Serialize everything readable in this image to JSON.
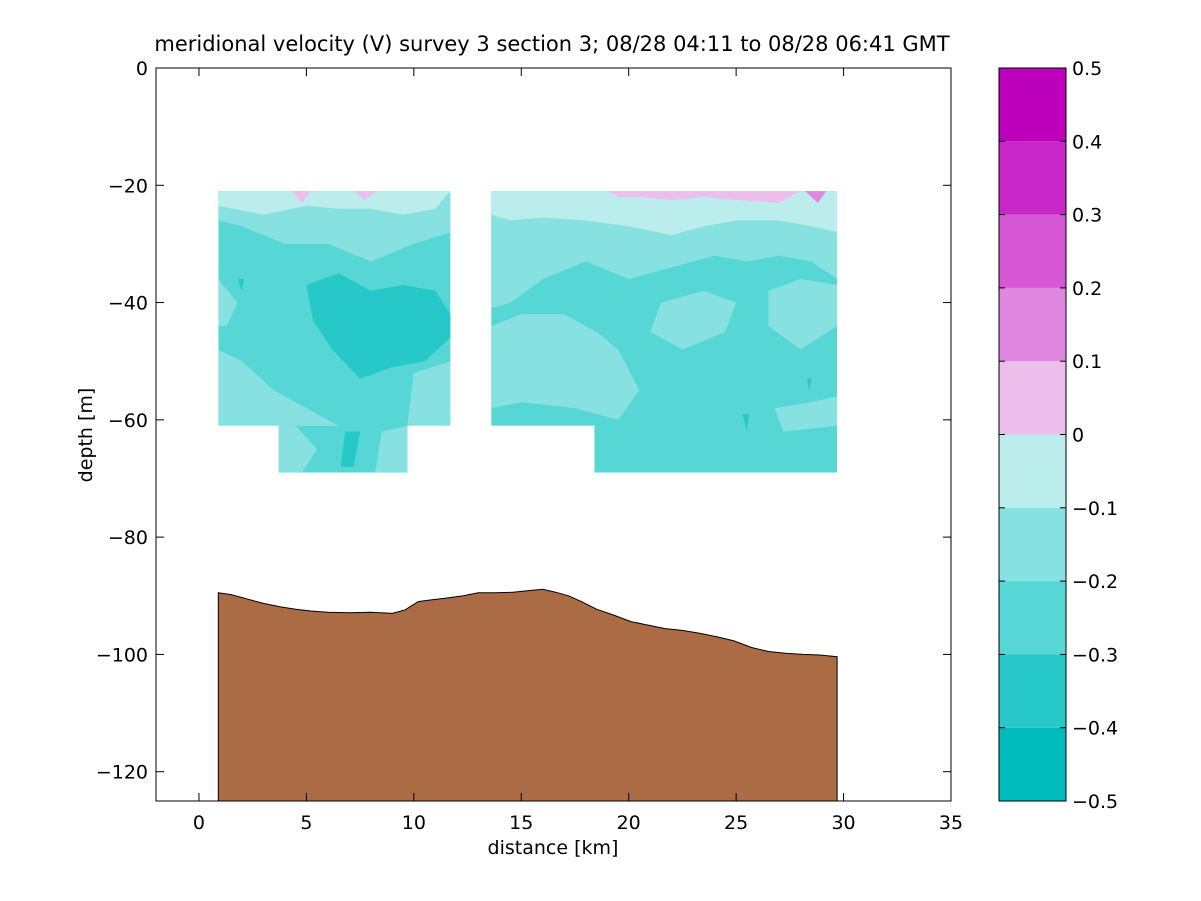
{
  "chart_data": {
    "type": "heatmap",
    "title": "meridional velocity (V) survey 3 section 3; 08/28 04:11 to 08/28 06:41 GMT",
    "xlabel": "distance [km]",
    "ylabel": "depth [m]",
    "xlim": [
      -2,
      35
    ],
    "ylim": [
      -125,
      0
    ],
    "xticks": [
      0,
      5,
      10,
      15,
      20,
      25,
      30,
      35
    ],
    "yticks": [
      0,
      -20,
      -40,
      -60,
      -80,
      -100,
      -120
    ],
    "grid": false,
    "colorbar": {
      "levels": [
        -0.5,
        -0.4,
        -0.3,
        -0.2,
        -0.1,
        0,
        0.1,
        0.2,
        0.3,
        0.4,
        0.5
      ],
      "tick_labels": [
        "−0.5",
        "−0.4",
        "−0.3",
        "−0.2",
        "−0.1",
        "0",
        "0.1",
        "0.2",
        "0.3",
        "0.4",
        "0.5"
      ],
      "colors": [
        "#00bcbc",
        "#26c8c8",
        "#57d6d6",
        "#88e1e1",
        "#bceded",
        "#edbdeb",
        "#e088e0",
        "#d557d5",
        "#c827c8",
        "#bc00bc"
      ]
    },
    "sections": [
      {
        "name_hidden": true,
        "outline": [
          [
            0.9,
            -21
          ],
          [
            11.7,
            -21
          ],
          [
            11.7,
            -61
          ],
          [
            9.7,
            -61
          ],
          [
            9.7,
            -69
          ],
          [
            3.7,
            -69
          ],
          [
            3.7,
            -61
          ],
          [
            0.9,
            -61
          ]
        ],
        "background_level": -0.25,
        "patches": [
          {
            "level": -0.15,
            "points": [
              [
                0.9,
                -21
              ],
              [
                11.7,
                -21
              ],
              [
                11.7,
                -28
              ],
              [
                10,
                -30
              ],
              [
                8,
                -33
              ],
              [
                6,
                -30
              ],
              [
                4,
                -30
              ],
              [
                2,
                -27
              ],
              [
                0.9,
                -26
              ]
            ]
          },
          {
            "level": -0.05,
            "points": [
              [
                0.9,
                -21
              ],
              [
                11.7,
                -21
              ],
              [
                11,
                -24
              ],
              [
                9.5,
                -25
              ],
              [
                8,
                -24
              ],
              [
                6.5,
                -24
              ],
              [
                5,
                -23.5
              ],
              [
                3,
                -25
              ],
              [
                0.9,
                -23.5
              ]
            ]
          },
          {
            "level": 0.05,
            "points": [
              [
                4.3,
                -21
              ],
              [
                5.2,
                -21
              ],
              [
                4.8,
                -23
              ]
            ]
          },
          {
            "level": 0.05,
            "points": [
              [
                7.2,
                -21
              ],
              [
                8.3,
                -21
              ],
              [
                7.7,
                -22.5
              ]
            ]
          },
          {
            "level": -0.35,
            "points": [
              [
                5,
                -37
              ],
              [
                6.5,
                -35
              ],
              [
                8,
                -38
              ],
              [
                9.5,
                -37
              ],
              [
                11,
                -38
              ],
              [
                11.7,
                -42
              ],
              [
                11.7,
                -46
              ],
              [
                10.5,
                -50
              ],
              [
                9,
                -51
              ],
              [
                7.5,
                -53
              ],
              [
                6.2,
                -48
              ],
              [
                5.3,
                -43
              ]
            ]
          },
          {
            "level": -0.15,
            "points": [
              [
                0.9,
                -48
              ],
              [
                2,
                -50
              ],
              [
                3.5,
                -55
              ],
              [
                5,
                -58
              ],
              [
                6.5,
                -61
              ],
              [
                0.9,
                -61
              ]
            ]
          },
          {
            "level": -0.15,
            "points": [
              [
                10,
                -52
              ],
              [
                11.7,
                -50
              ],
              [
                11.7,
                -61
              ],
              [
                9.7,
                -61
              ]
            ]
          },
          {
            "level": -0.15,
            "points": [
              [
                3.7,
                -61
              ],
              [
                4.5,
                -61
              ],
              [
                5.5,
                -65
              ],
              [
                4.8,
                -69
              ],
              [
                3.7,
                -69
              ]
            ]
          },
          {
            "level": -0.15,
            "points": [
              [
                8.5,
                -62
              ],
              [
                9.7,
                -61
              ],
              [
                9.7,
                -69
              ],
              [
                8.2,
                -69
              ]
            ]
          },
          {
            "level": -0.35,
            "points": [
              [
                1.8,
                -36
              ],
              [
                2.1,
                -36
              ],
              [
                2,
                -38
              ]
            ]
          },
          {
            "level": -0.15,
            "points": [
              [
                0.9,
                -36
              ],
              [
                1.8,
                -40
              ],
              [
                1.3,
                -44
              ],
              [
                0.9,
                -44
              ]
            ]
          },
          {
            "level": -0.35,
            "points": [
              [
                6.8,
                -62
              ],
              [
                7.5,
                -62
              ],
              [
                7.2,
                -68
              ],
              [
                6.6,
                -68
              ]
            ]
          }
        ]
      },
      {
        "name_hidden": true,
        "outline": [
          [
            13.6,
            -21
          ],
          [
            29.7,
            -21
          ],
          [
            29.7,
            -69
          ],
          [
            18.4,
            -69
          ],
          [
            18.4,
            -61
          ],
          [
            13.6,
            -61
          ]
        ],
        "background_level": -0.25,
        "patches": [
          {
            "level": -0.15,
            "points": [
              [
                13.6,
                -21
              ],
              [
                29.7,
                -21
              ],
              [
                29.7,
                -36
              ],
              [
                28.5,
                -33
              ],
              [
                27,
                -32
              ],
              [
                25.5,
                -33
              ],
              [
                24,
                -32
              ],
              [
                22,
                -34
              ],
              [
                20,
                -36
              ],
              [
                18,
                -33
              ],
              [
                16,
                -36
              ],
              [
                14.5,
                -40
              ],
              [
                13.6,
                -41
              ]
            ]
          },
          {
            "level": -0.05,
            "points": [
              [
                13.6,
                -21
              ],
              [
                29.7,
                -21
              ],
              [
                29.7,
                -28
              ],
              [
                28.5,
                -27
              ],
              [
                27,
                -26
              ],
              [
                25,
                -26
              ],
              [
                23.5,
                -27
              ],
              [
                22,
                -28.5
              ],
              [
                20,
                -27
              ],
              [
                18,
                -26
              ],
              [
                16,
                -25.5
              ],
              [
                14.5,
                -26
              ],
              [
                13.6,
                -25
              ]
            ]
          },
          {
            "level": 0.05,
            "points": [
              [
                19,
                -21
              ],
              [
                28,
                -21
              ],
              [
                27,
                -23
              ],
              [
                25,
                -22.5
              ],
              [
                23.5,
                -22
              ],
              [
                22,
                -22.5
              ],
              [
                20.5,
                -22
              ],
              [
                19.5,
                -22
              ]
            ]
          },
          {
            "level": 0.15,
            "points": [
              [
                28.2,
                -21
              ],
              [
                29.2,
                -21
              ],
              [
                28.8,
                -23
              ]
            ]
          },
          {
            "level": -0.15,
            "points": [
              [
                13.6,
                -44
              ],
              [
                15,
                -42
              ],
              [
                17,
                -42
              ],
              [
                18.5,
                -45
              ],
              [
                19.5,
                -48
              ],
              [
                20.5,
                -55
              ],
              [
                19.5,
                -60
              ],
              [
                17.5,
                -58
              ],
              [
                15,
                -57
              ],
              [
                13.6,
                -58
              ]
            ]
          },
          {
            "level": -0.15,
            "points": [
              [
                21.5,
                -40
              ],
              [
                23.5,
                -38
              ],
              [
                25,
                -40
              ],
              [
                24.5,
                -45
              ],
              [
                22.5,
                -48
              ],
              [
                21,
                -45
              ]
            ]
          },
          {
            "level": -0.15,
            "points": [
              [
                26.5,
                -38
              ],
              [
                28,
                -36
              ],
              [
                29.7,
                -37
              ],
              [
                29.7,
                -44
              ],
              [
                28,
                -48
              ],
              [
                26.5,
                -44
              ]
            ]
          },
          {
            "level": -0.15,
            "points": [
              [
                26.8,
                -58
              ],
              [
                28.5,
                -57
              ],
              [
                29.7,
                -56
              ],
              [
                29.7,
                -61
              ],
              [
                27.2,
                -62
              ]
            ]
          },
          {
            "level": -0.35,
            "points": [
              [
                25.3,
                -59
              ],
              [
                25.6,
                -59
              ],
              [
                25.5,
                -62
              ]
            ]
          },
          {
            "level": -0.35,
            "points": [
              [
                28.3,
                -53
              ],
              [
                28.5,
                -53
              ],
              [
                28.4,
                -55
              ]
            ]
          }
        ]
      }
    ],
    "bottom": {
      "fill": "#ab6b44",
      "x": [
        0.9,
        1.5,
        2.2,
        3,
        3.8,
        4.5,
        5.2,
        6,
        7,
        8,
        9,
        9.6,
        10.2,
        10.8,
        11.5,
        12.3,
        13,
        13.8,
        14.6,
        15.4,
        16,
        16.6,
        17.2,
        17.8,
        18.5,
        19.3,
        20.1,
        20.9,
        21.7,
        22.5,
        23.3,
        24.1,
        24.9,
        25.7,
        26.5,
        27.3,
        28.1,
        28.9,
        29.7
      ],
      "depth": [
        -89.5,
        -89.8,
        -90.5,
        -91.3,
        -91.9,
        -92.3,
        -92.6,
        -92.8,
        -92.9,
        -92.8,
        -93,
        -92.4,
        -91,
        -90.7,
        -90.4,
        -90,
        -89.5,
        -89.5,
        -89.4,
        -89.1,
        -88.9,
        -89.4,
        -90,
        -91,
        -92.3,
        -93.3,
        -94.4,
        -95,
        -95.6,
        -95.9,
        -96.4,
        -97,
        -97.7,
        -98.8,
        -99.5,
        -99.8,
        -100,
        -100.1,
        -100.4
      ]
    }
  }
}
